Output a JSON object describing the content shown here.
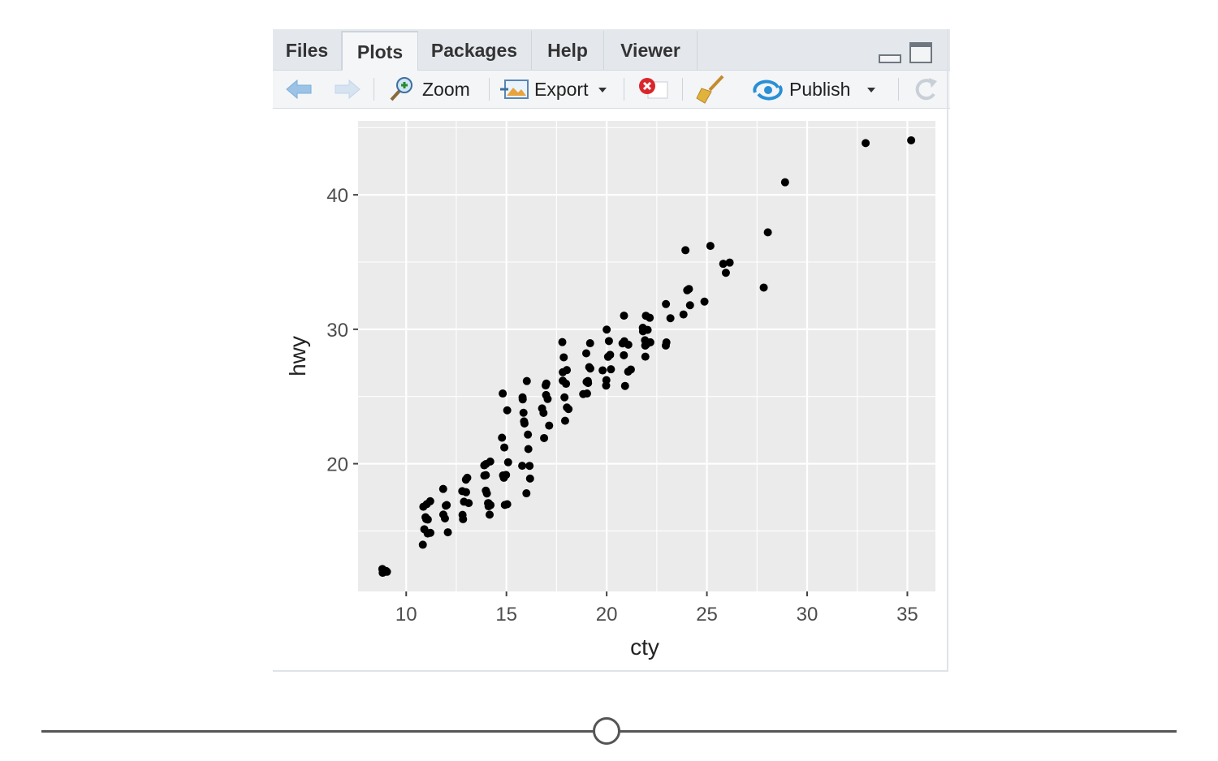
{
  "tabs": [
    {
      "label": "Files"
    },
    {
      "label": "Plots"
    },
    {
      "label": "Packages"
    },
    {
      "label": "Help"
    },
    {
      "label": "Viewer"
    }
  ],
  "toolbar": {
    "zoom_label": "Zoom",
    "export_label": "Export",
    "publish_label": "Publish"
  },
  "chart_data": {
    "type": "scatter",
    "xlabel": "cty",
    "ylabel": "hwy",
    "xlim": [
      7.6,
      36.4
    ],
    "ylim": [
      10.5,
      45.5
    ],
    "x_ticks": [
      10,
      15,
      20,
      25,
      30,
      35
    ],
    "y_ticks": [
      20,
      30,
      40
    ],
    "background": "#ebebeb",
    "point_color": "#000000",
    "grid": true,
    "points": [
      [
        9,
        12
      ],
      [
        9,
        12
      ],
      [
        9,
        12
      ],
      [
        9,
        12
      ],
      [
        9,
        12
      ],
      [
        11,
        15
      ],
      [
        11,
        15
      ],
      [
        11,
        16
      ],
      [
        11,
        16
      ],
      [
        11,
        17
      ],
      [
        11,
        17
      ],
      [
        11,
        17
      ],
      [
        11,
        14
      ],
      [
        11,
        15
      ],
      [
        11,
        16
      ],
      [
        12,
        15
      ],
      [
        12,
        16
      ],
      [
        12,
        17
      ],
      [
        12,
        17
      ],
      [
        12,
        18
      ],
      [
        12,
        16
      ],
      [
        13,
        16
      ],
      [
        13,
        17
      ],
      [
        13,
        18
      ],
      [
        13,
        19
      ],
      [
        13,
        17
      ],
      [
        13,
        16
      ],
      [
        13,
        19
      ],
      [
        13,
        18
      ],
      [
        14,
        17
      ],
      [
        14,
        17
      ],
      [
        14,
        18
      ],
      [
        14,
        19
      ],
      [
        14,
        20
      ],
      [
        14,
        20
      ],
      [
        14,
        17
      ],
      [
        14,
        19
      ],
      [
        14,
        16
      ],
      [
        14,
        20
      ],
      [
        14,
        17
      ],
      [
        14,
        18
      ],
      [
        15,
        17
      ],
      [
        15,
        19
      ],
      [
        15,
        20
      ],
      [
        15,
        21
      ],
      [
        15,
        22
      ],
      [
        15,
        24
      ],
      [
        15,
        25
      ],
      [
        15,
        19
      ],
      [
        15,
        17
      ],
      [
        15,
        19
      ],
      [
        16,
        19
      ],
      [
        16,
        20
      ],
      [
        16,
        21
      ],
      [
        16,
        22
      ],
      [
        16,
        23
      ],
      [
        16,
        24
      ],
      [
        16,
        25
      ],
      [
        16,
        26
      ],
      [
        16,
        20
      ],
      [
        16,
        18
      ],
      [
        16,
        23
      ],
      [
        16,
        25
      ],
      [
        17,
        22
      ],
      [
        17,
        23
      ],
      [
        17,
        24
      ],
      [
        17,
        25
      ],
      [
        17,
        26
      ],
      [
        17,
        26
      ],
      [
        17,
        24
      ],
      [
        17,
        25
      ],
      [
        18,
        23
      ],
      [
        18,
        24
      ],
      [
        18,
        25
      ],
      [
        18,
        26
      ],
      [
        18,
        27
      ],
      [
        18,
        28
      ],
      [
        18,
        29
      ],
      [
        18,
        26
      ],
      [
        18,
        24
      ],
      [
        18,
        27
      ],
      [
        19,
        25
      ],
      [
        19,
        26
      ],
      [
        19,
        27
      ],
      [
        19,
        28
      ],
      [
        19,
        29
      ],
      [
        19,
        26
      ],
      [
        19,
        27
      ],
      [
        19,
        25
      ],
      [
        19,
        26
      ],
      [
        20,
        26
      ],
      [
        20,
        27
      ],
      [
        20,
        28
      ],
      [
        20,
        29
      ],
      [
        20,
        30
      ],
      [
        20,
        28
      ],
      [
        20,
        27
      ],
      [
        20,
        26
      ],
      [
        21,
        27
      ],
      [
        21,
        29
      ],
      [
        21,
        31
      ],
      [
        21,
        26
      ],
      [
        21,
        27
      ],
      [
        21,
        29
      ],
      [
        21,
        28
      ],
      [
        21,
        29
      ],
      [
        22,
        29
      ],
      [
        22,
        30
      ],
      [
        22,
        31
      ],
      [
        22,
        28
      ],
      [
        22,
        29
      ],
      [
        22,
        30
      ],
      [
        22,
        29
      ],
      [
        22,
        31
      ],
      [
        22,
        29
      ],
      [
        22,
        30
      ],
      [
        23,
        29
      ],
      [
        23,
        31
      ],
      [
        23,
        32
      ],
      [
        23,
        29
      ],
      [
        24,
        31
      ],
      [
        24,
        32
      ],
      [
        24,
        33
      ],
      [
        24,
        36
      ],
      [
        24,
        33
      ],
      [
        25,
        32
      ],
      [
        25,
        36
      ],
      [
        26,
        34
      ],
      [
        26,
        35
      ],
      [
        26,
        35
      ],
      [
        28,
        33
      ],
      [
        28,
        37
      ],
      [
        29,
        41
      ],
      [
        33,
        44
      ],
      [
        35,
        44
      ]
    ]
  }
}
